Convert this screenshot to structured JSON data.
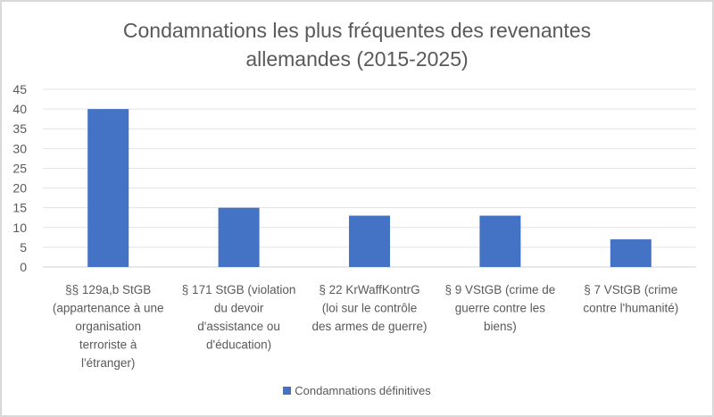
{
  "chart_data": {
    "type": "bar",
    "title": "Condamnations les plus fréquentes des revenantes allemandes (2015-2025)",
    "title_lines": [
      "Condamnations les plus fréquentes des revenantes",
      "allemandes (2015-2025)"
    ],
    "categories": [
      "§§ 129a,b StGB (appartenance à une organisation terroriste à l'étranger)",
      "§ 171 StGB (violation du devoir d'assistance ou d'éducation)",
      "§ 22 KrWaffKontrG (loi sur le contrôle des armes de guerre)",
      "§ 9 VStGB (crime de guerre contre les biens)",
      "§ 7 VStGB (crime contre l'humanité)"
    ],
    "category_lines": [
      [
        "§§ 129a,b StGB",
        "(appartenance à une",
        "organisation",
        "terroriste à",
        "l'étranger)"
      ],
      [
        "§ 171 StGB (violation",
        "du devoir",
        "d'assistance ou",
        "d'éducation)"
      ],
      [
        "§ 22 KrWaffKontrG",
        "(loi sur le contrôle",
        "des armes de guerre)"
      ],
      [
        "§ 9 VStGB (crime de",
        "guerre contre les",
        "biens)"
      ],
      [
        "§ 7 VStGB (crime",
        "contre l'humanité)"
      ]
    ],
    "series": [
      {
        "name": "Condamnations définitives",
        "values": [
          40,
          15,
          13,
          13,
          7
        ],
        "color": "#4472c4"
      }
    ],
    "ylim": [
      0,
      45
    ],
    "yticks": [
      0,
      5,
      10,
      15,
      20,
      25,
      30,
      35,
      40,
      45
    ],
    "grid": true,
    "legend": "bottom",
    "xlabel": "",
    "ylabel": ""
  }
}
